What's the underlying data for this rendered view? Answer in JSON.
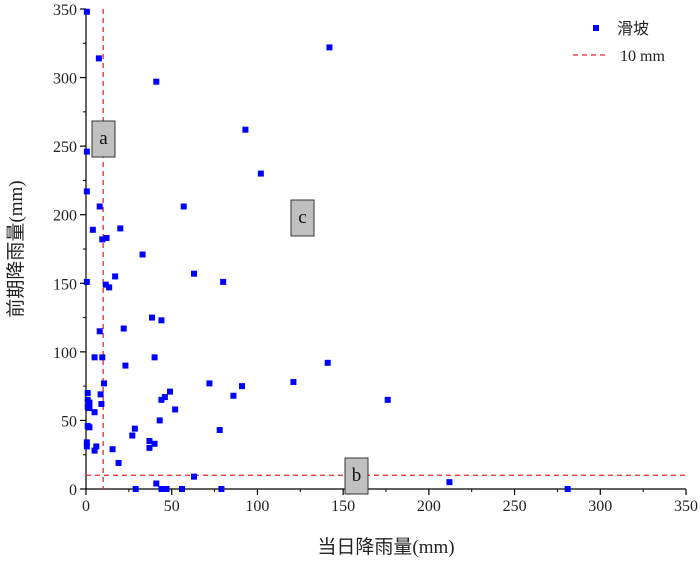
{
  "chart_data": {
    "type": "scatter",
    "title": "",
    "xlabel": "当日降雨量(mm)",
    "ylabel": "前期降雨量(mm)",
    "xlim": [
      0,
      350
    ],
    "ylim": [
      0,
      350
    ],
    "xticks": [
      0,
      50,
      100,
      150,
      200,
      250,
      300,
      350
    ],
    "yticks": [
      0,
      50,
      100,
      150,
      200,
      250,
      300,
      350
    ],
    "grid": false,
    "series": [
      {
        "name": "滑坡",
        "color": "#0000ff",
        "marker": "square",
        "points": [
          [
            0.5,
            348
          ],
          [
            7.5,
            314
          ],
          [
            41,
            297
          ],
          [
            142,
            322
          ],
          [
            93,
            262
          ],
          [
            0.5,
            246
          ],
          [
            102,
            230
          ],
          [
            0.5,
            217
          ],
          [
            8,
            206
          ],
          [
            57,
            206
          ],
          [
            4,
            189
          ],
          [
            20,
            190
          ],
          [
            12,
            183
          ],
          [
            9.5,
            182
          ],
          [
            33,
            171
          ],
          [
            63,
            157
          ],
          [
            17,
            155
          ],
          [
            80,
            151
          ],
          [
            0.5,
            151
          ],
          [
            11.5,
            149
          ],
          [
            13.5,
            147
          ],
          [
            38.5,
            125
          ],
          [
            44,
            123
          ],
          [
            22,
            117
          ],
          [
            8,
            115
          ],
          [
            5,
            96
          ],
          [
            9.5,
            96
          ],
          [
            40,
            96
          ],
          [
            141,
            92
          ],
          [
            23,
            90
          ],
          [
            10.5,
            77
          ],
          [
            72,
            77
          ],
          [
            121,
            78
          ],
          [
            91,
            75
          ],
          [
            1,
            70
          ],
          [
            49,
            71
          ],
          [
            8.5,
            69
          ],
          [
            176,
            65
          ],
          [
            1,
            65
          ],
          [
            46,
            67
          ],
          [
            44,
            65
          ],
          [
            86,
            68
          ],
          [
            2,
            63
          ],
          [
            9,
            62
          ],
          [
            1,
            60
          ],
          [
            2,
            59
          ],
          [
            52,
            58
          ],
          [
            5,
            56
          ],
          [
            43,
            50
          ],
          [
            1,
            46
          ],
          [
            2,
            45
          ],
          [
            78,
            43
          ],
          [
            28.5,
            44
          ],
          [
            27,
            39
          ],
          [
            37,
            35
          ],
          [
            0.5,
            34
          ],
          [
            40,
            33
          ],
          [
            37,
            30
          ],
          [
            6,
            31
          ],
          [
            5,
            28
          ],
          [
            15.5,
            29
          ],
          [
            19,
            19
          ],
          [
            0.5,
            31
          ],
          [
            63,
            9
          ],
          [
            41,
            4
          ],
          [
            212,
            5
          ],
          [
            29,
            0
          ],
          [
            44,
            0
          ],
          [
            47,
            0
          ],
          [
            56,
            0
          ],
          [
            79,
            0
          ],
          [
            281,
            0
          ]
        ]
      }
    ],
    "reference_lines": [
      {
        "axis": "x",
        "value": 10,
        "color": "#e8282b",
        "style": "dashed"
      },
      {
        "axis": "y",
        "value": 10,
        "color": "#e8282b",
        "style": "dashed"
      }
    ],
    "annotations": [
      "a",
      "b",
      "c"
    ],
    "legend": {
      "placement": "top-right",
      "items": [
        {
          "label": "滑坡",
          "kind": "marker",
          "color": "#0000ff"
        },
        {
          "label": "10 mm",
          "kind": "dashed-line",
          "color": "#e8282b"
        }
      ]
    },
    "annotation_box_color": "#c0c0c0"
  }
}
